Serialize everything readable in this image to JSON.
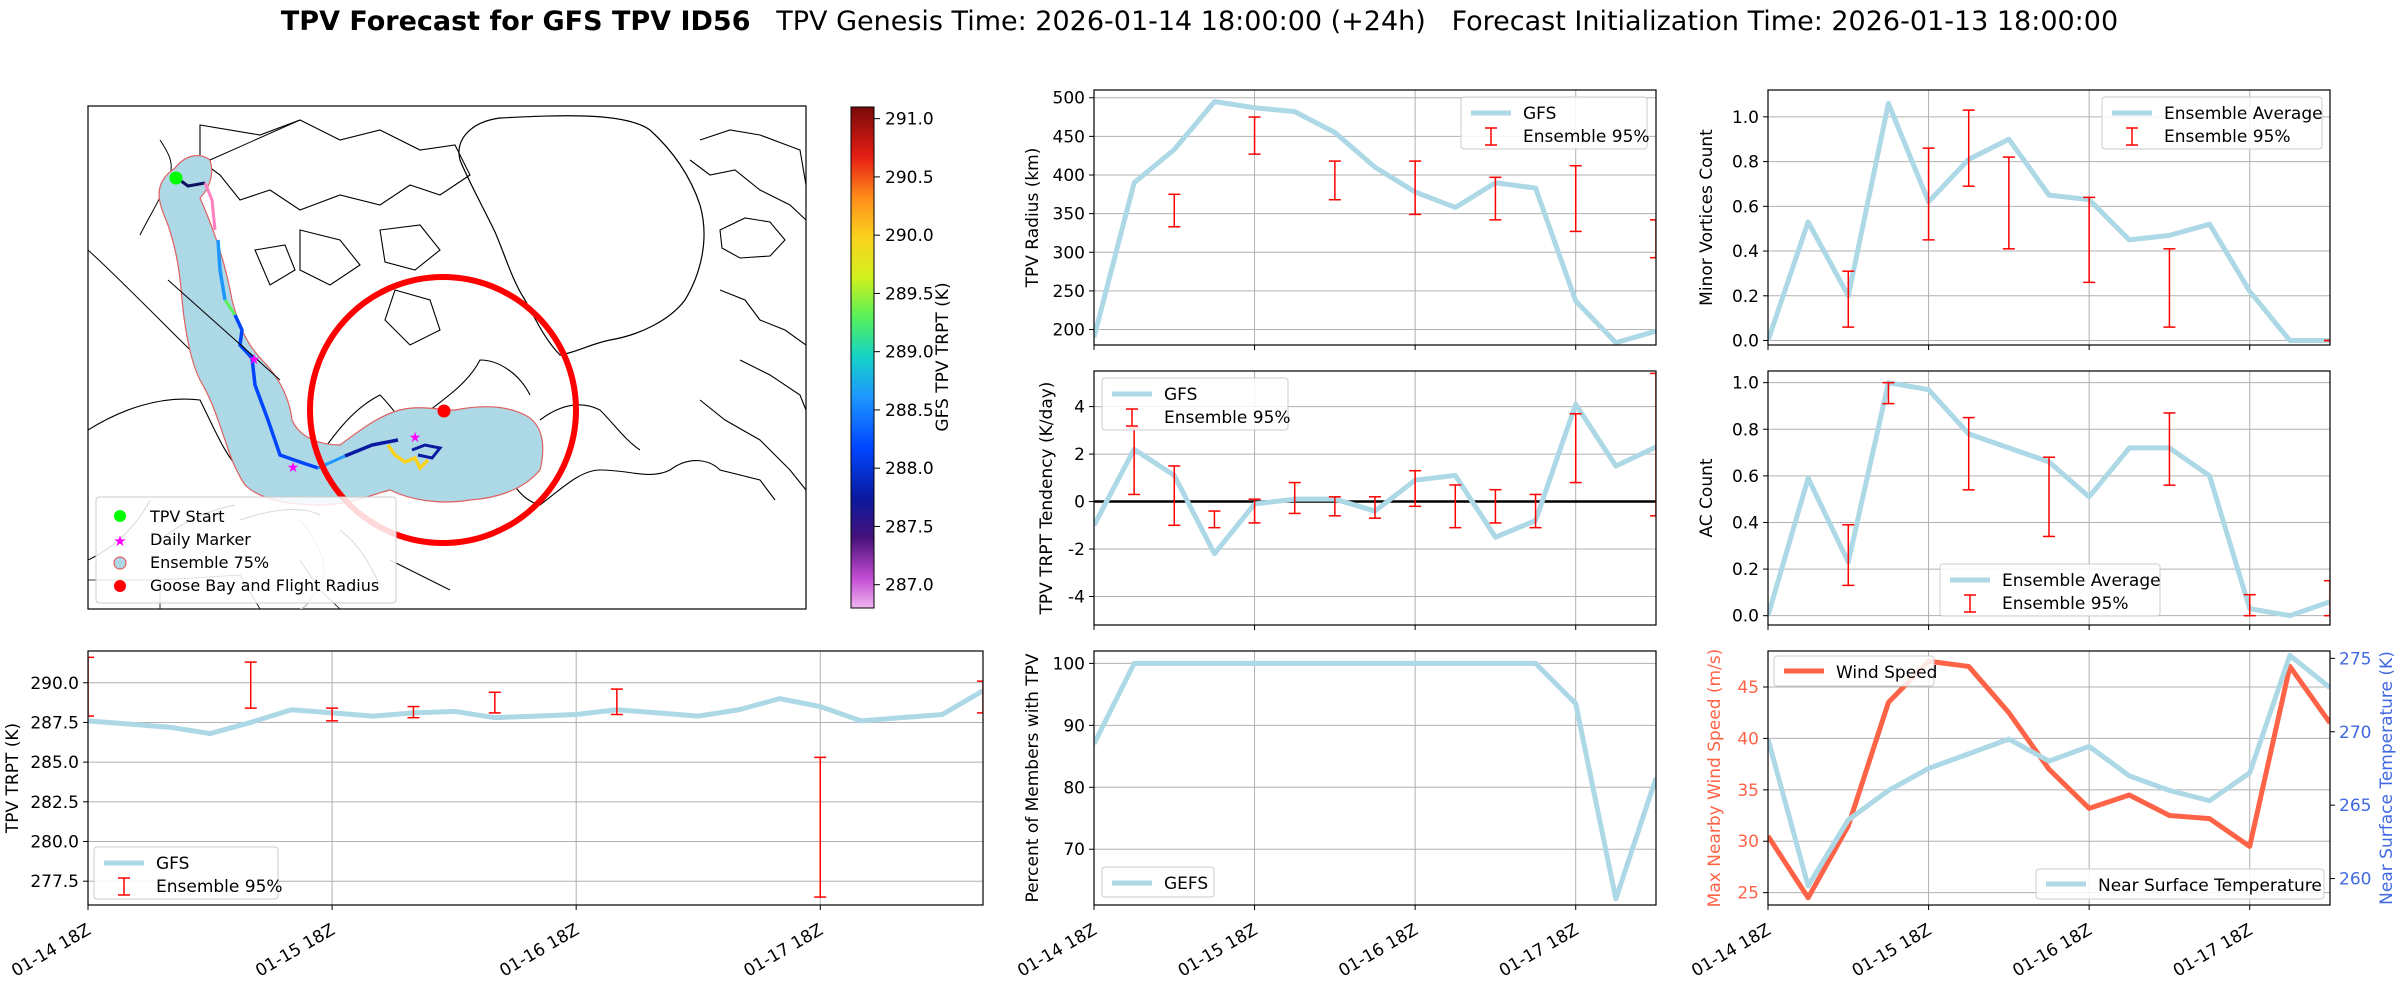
{
  "figure": {
    "title_bold": "TPV Forecast for GFS TPV ID56",
    "title_genesis": "TPV Genesis Time: 2026-01-14 18:00:00 (+24h)",
    "title_init": "Forecast Initialization Time: 2026-01-13 18:00:00"
  },
  "colors": {
    "gfs_line": "#add8e6",
    "error_bar": "#ff0000",
    "wind_line": "#ff6347",
    "temp_axis": "#4169e1",
    "goose_bay": "#ff0000",
    "start_marker": "#00ff00",
    "daily_marker": "#ff00ff",
    "ensemble_fill": "#add8e6"
  },
  "chart_data": [
    {
      "id": "map",
      "type": "map",
      "colorbar_label": "GFS TPV TRPT (K)",
      "colorbar_ticks": [
        "291.0",
        "290.5",
        "290.0",
        "289.5",
        "289.0",
        "288.5",
        "288.0",
        "287.5",
        "287.0"
      ],
      "colorbar_values": [
        291.0,
        290.5,
        290.0,
        289.5,
        289.0,
        288.5,
        288.0,
        287.5,
        287.0
      ],
      "colorbar_range": [
        286.8,
        291.1
      ],
      "legend": [
        {
          "label": "TPV Start",
          "marker": "circle",
          "color": "#00ff00"
        },
        {
          "label": "Daily Marker",
          "marker": "star",
          "color": "#ff00ff"
        },
        {
          "label": "Ensemble 75%",
          "marker": "circle-outline",
          "color": "#add8e6"
        },
        {
          "label": "Goose Bay and Flight Radius",
          "marker": "circle",
          "color": "#ff0000"
        }
      ]
    },
    {
      "id": "trpt",
      "type": "line",
      "ylabel": "TPV TRPT (K)",
      "ylim": [
        276,
        292
      ],
      "ytick_labels": [
        "290.0",
        "287.5",
        "285.0",
        "282.5",
        "280.0",
        "277.5"
      ],
      "ytick_values": [
        290.0,
        287.5,
        285.0,
        282.5,
        280.0,
        277.5
      ],
      "xlim": [
        0,
        22
      ],
      "xtick_labels": [
        "01-14 18Z",
        "01-15 18Z",
        "01-16 18Z",
        "01-17 18Z"
      ],
      "xtick_values": [
        0,
        6,
        12,
        18
      ],
      "series": [
        {
          "name": "GFS",
          "x": [
            0,
            1,
            2,
            3,
            4,
            5,
            6,
            7,
            8,
            9,
            10,
            11,
            12,
            13,
            14,
            15,
            16,
            17,
            18,
            19,
            20,
            21,
            22
          ],
          "values": [
            287.6,
            287.4,
            287.2,
            286.8,
            287.5,
            288.3,
            288.1,
            287.9,
            288.1,
            288.2,
            287.8,
            287.9,
            288.0,
            288.3,
            288.1,
            287.9,
            288.3,
            289.0,
            288.5,
            287.6,
            287.8,
            288.0,
            289.5
          ]
        }
      ],
      "error_bars": [
        {
          "x": 0,
          "low": 287.9,
          "high": 291.6
        },
        {
          "x": 4,
          "low": 288.4,
          "high": 291.3
        },
        {
          "x": 6,
          "low": 287.6,
          "high": 288.4
        },
        {
          "x": 8,
          "low": 287.8,
          "high": 288.5
        },
        {
          "x": 10,
          "low": 288.1,
          "high": 289.4
        },
        {
          "x": 13,
          "low": 288.0,
          "high": 289.6
        },
        {
          "x": 18,
          "low": 276.5,
          "high": 285.3
        },
        {
          "x": 22,
          "low": 288.1,
          "high": 290.1
        }
      ],
      "legend": [
        "GFS",
        "Ensemble 95%"
      ],
      "legend_loc": "lower left"
    },
    {
      "id": "radius",
      "type": "line",
      "ylabel": "TPV Radius (km)",
      "ylim": [
        180,
        510
      ],
      "ytick_labels": [
        "500",
        "450",
        "400",
        "350",
        "300",
        "250",
        "200"
      ],
      "ytick_values": [
        500,
        450,
        400,
        350,
        300,
        250,
        200
      ],
      "xlim": [
        0,
        14
      ],
      "series": [
        {
          "name": "GFS",
          "x": [
            0,
            1,
            2,
            3,
            4,
            5,
            6,
            7,
            8,
            9,
            10,
            11,
            12,
            13,
            14
          ],
          "values": [
            190,
            390,
            433,
            495,
            487,
            482,
            455,
            410,
            378,
            358,
            390,
            383,
            237,
            183,
            198
          ]
        }
      ],
      "error_bars": [
        {
          "x": 2,
          "low": 333,
          "high": 375
        },
        {
          "x": 4,
          "low": 427,
          "high": 475
        },
        {
          "x": 6,
          "low": 368,
          "high": 418
        },
        {
          "x": 8,
          "low": 349,
          "high": 418
        },
        {
          "x": 10,
          "low": 342,
          "high": 397
        },
        {
          "x": 12,
          "low": 327,
          "high": 412
        },
        {
          "x": 14,
          "low": 293,
          "high": 342
        }
      ],
      "legend": [
        "GFS",
        "Ensemble 95%"
      ],
      "legend_loc": "upper right"
    },
    {
      "id": "tendency",
      "type": "line",
      "ylabel": "TPV TRPT Tendency (K/day)",
      "ylim": [
        -5.2,
        5.5
      ],
      "ytick_labels": [
        "4",
        "2",
        "0",
        "-2",
        "-4"
      ],
      "ytick_values": [
        4,
        2,
        0,
        -2,
        -4
      ],
      "xlim": [
        0,
        14
      ],
      "hline": 0,
      "series": [
        {
          "name": "GFS",
          "x": [
            0,
            1,
            2,
            3,
            4,
            5,
            6,
            7,
            8,
            9,
            10,
            11,
            12,
            13,
            14
          ],
          "values": [
            -1.0,
            2.2,
            1.1,
            -2.2,
            -0.1,
            0.1,
            0.1,
            -0.4,
            0.9,
            1.1,
            -1.5,
            -0.8,
            4.1,
            1.5,
            2.3
          ]
        }
      ],
      "error_bars": [
        {
          "x": 1,
          "low": 0.3,
          "high": 3.1
        },
        {
          "x": 2,
          "low": -1.0,
          "high": 1.5
        },
        {
          "x": 3,
          "low": -1.1,
          "high": -0.4
        },
        {
          "x": 4,
          "low": -0.9,
          "high": 0.1
        },
        {
          "x": 5,
          "low": -0.5,
          "high": 0.8
        },
        {
          "x": 6,
          "low": -0.6,
          "high": 0.2
        },
        {
          "x": 7,
          "low": -0.7,
          "high": 0.2
        },
        {
          "x": 8,
          "low": -0.2,
          "high": 1.3
        },
        {
          "x": 9,
          "low": -1.1,
          "high": 0.7
        },
        {
          "x": 10,
          "low": -0.9,
          "high": 0.5
        },
        {
          "x": 11,
          "low": -1.1,
          "high": 0.3
        },
        {
          "x": 12,
          "low": 0.8,
          "high": 3.7
        },
        {
          "x": 14,
          "low": -0.6,
          "high": 5.4
        }
      ],
      "legend": [
        "GFS",
        "Ensemble 95%"
      ],
      "legend_loc": "upper left"
    },
    {
      "id": "percent",
      "type": "line",
      "ylabel": "Percent of Members with TPV",
      "ylim": [
        61,
        102
      ],
      "ytick_labels": [
        "100",
        "90",
        "80",
        "70"
      ],
      "ytick_values": [
        100,
        90,
        80,
        70
      ],
      "xlim": [
        0,
        14
      ],
      "xtick_labels": [
        "01-14 18Z",
        "01-15 18Z",
        "01-16 18Z",
        "01-17 18Z"
      ],
      "xtick_values": [
        0,
        4,
        8,
        12
      ],
      "series": [
        {
          "name": "GEFS",
          "x": [
            0,
            1,
            2,
            3,
            4,
            5,
            6,
            7,
            8,
            9,
            10,
            11,
            12,
            13,
            14
          ],
          "values": [
            87,
            100,
            100,
            100,
            100,
            100,
            100,
            100,
            100,
            100,
            100,
            100,
            93.5,
            62,
            81.5
          ]
        }
      ],
      "legend": [
        "GEFS"
      ],
      "legend_loc": "lower left"
    },
    {
      "id": "minor",
      "type": "line",
      "ylabel": "Minor Vortices Count",
      "ylim": [
        -0.02,
        1.12
      ],
      "ytick_labels": [
        "1.0",
        "0.8",
        "0.6",
        "0.4",
        "0.2",
        "0.0"
      ],
      "ytick_values": [
        1.0,
        0.8,
        0.6,
        0.4,
        0.2,
        0.0
      ],
      "xlim": [
        0,
        14
      ],
      "series": [
        {
          "name": "Ensemble Average",
          "x": [
            0,
            1,
            2,
            3,
            4,
            5,
            6,
            7,
            8,
            9,
            10,
            11,
            12,
            13,
            14
          ],
          "values": [
            0,
            0.53,
            0.2,
            1.06,
            0.62,
            0.81,
            0.9,
            0.65,
            0.63,
            0.45,
            0.47,
            0.52,
            0.22,
            0.0,
            0.0
          ]
        }
      ],
      "error_bars": [
        {
          "x": 2,
          "low": 0.06,
          "high": 0.31
        },
        {
          "x": 4,
          "low": 0.45,
          "high": 0.86
        },
        {
          "x": 5,
          "low": 0.69,
          "high": 1.03
        },
        {
          "x": 6,
          "low": 0.41,
          "high": 0.82
        },
        {
          "x": 8,
          "low": 0.26,
          "high": 0.64
        },
        {
          "x": 10,
          "low": 0.06,
          "high": 0.41
        },
        {
          "x": 14,
          "low": 0.0,
          "high": 0.0
        }
      ],
      "legend": [
        "Ensemble Average",
        "Ensemble 95%"
      ],
      "legend_loc": "upper right"
    },
    {
      "id": "ac",
      "type": "line",
      "ylabel": "AC Count",
      "ylim": [
        -0.04,
        1.05
      ],
      "ytick_labels": [
        "1.0",
        "0.8",
        "0.6",
        "0.4",
        "0.2",
        "0.0"
      ],
      "ytick_values": [
        1.0,
        0.8,
        0.6,
        0.4,
        0.2,
        0.0
      ],
      "xlim": [
        0,
        14
      ],
      "series": [
        {
          "name": "Ensemble Average",
          "x": [
            0,
            1,
            2,
            3,
            4,
            5,
            6,
            7,
            8,
            9,
            10,
            11,
            12,
            13,
            14
          ],
          "values": [
            0,
            0.59,
            0.23,
            1.0,
            0.97,
            0.78,
            0.72,
            0.66,
            0.51,
            0.72,
            0.72,
            0.6,
            0.03,
            0.0,
            0.06
          ]
        }
      ],
      "error_bars": [
        {
          "x": 2,
          "low": 0.13,
          "high": 0.39
        },
        {
          "x": 3,
          "low": 0.91,
          "high": 1.0
        },
        {
          "x": 5,
          "low": 0.54,
          "high": 0.85
        },
        {
          "x": 7,
          "low": 0.34,
          "high": 0.68
        },
        {
          "x": 10,
          "low": 0.56,
          "high": 0.87
        },
        {
          "x": 12,
          "low": 0.0,
          "high": 0.09
        },
        {
          "x": 14,
          "low": 0.0,
          "high": 0.15
        }
      ],
      "legend": [
        "Ensemble Average",
        "Ensemble 95%"
      ],
      "legend_loc": "lower center"
    },
    {
      "id": "wind",
      "type": "line",
      "ylabel": "Max Nearby Wind Speed (m/s)",
      "ylabel_right": "Near Surface Temperature (K)",
      "ylim": [
        23.8,
        48.5
      ],
      "ylim_right": [
        258.2,
        275.5
      ],
      "ytick_labels": [
        "45",
        "40",
        "35",
        "30",
        "25"
      ],
      "ytick_values": [
        45,
        40,
        35,
        30,
        25
      ],
      "ytick_labels_right": [
        "275",
        "270",
        "265",
        "260"
      ],
      "ytick_values_right": [
        275,
        270,
        265,
        260
      ],
      "xlim": [
        0,
        14
      ],
      "xtick_labels": [
        "01-14 18Z",
        "01-15 18Z",
        "01-16 18Z",
        "01-17 18Z"
      ],
      "xtick_values": [
        0,
        4,
        8,
        12
      ],
      "series": [
        {
          "name": "Wind Speed",
          "axis": "left",
          "x": [
            0,
            1,
            2,
            3,
            4,
            5,
            6,
            7,
            8,
            9,
            10,
            11,
            12,
            13,
            14
          ],
          "values": [
            30.5,
            24.5,
            31.5,
            43.5,
            47.5,
            47.0,
            42.5,
            37.0,
            33.2,
            34.5,
            32.5,
            32.2,
            29.5,
            47.0,
            41.5
          ]
        },
        {
          "name": "Near Surface Temperature",
          "axis": "right",
          "x": [
            0,
            1,
            2,
            3,
            4,
            5,
            6,
            7,
            8,
            9,
            10,
            11,
            12,
            13,
            14
          ],
          "values": [
            269.5,
            259.5,
            264.0,
            266.0,
            267.5,
            268.5,
            269.5,
            268.0,
            269.0,
            267.0,
            266.0,
            265.3,
            267.2,
            275.2,
            273.0
          ]
        }
      ],
      "legend": [
        "Wind Speed",
        "Near Surface Temperature"
      ],
      "legend_loc": "upper left / lower right"
    }
  ]
}
